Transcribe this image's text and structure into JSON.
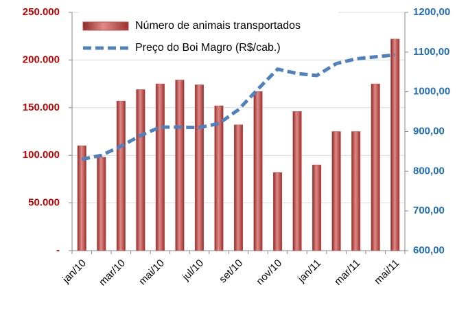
{
  "chart_data": {
    "type": "bar-line",
    "categories": [
      "jan/10",
      null,
      "mar/10",
      null,
      "mai/10",
      null,
      "jul/10",
      null,
      "set/10",
      null,
      "nov/10",
      null,
      "jan/11",
      null,
      "mar/11",
      null,
      "mai/11"
    ],
    "series": [
      {
        "name": "Número de animais transportados",
        "type": "bar",
        "color": "#c0504d",
        "axis": "y",
        "values": [
          110000,
          98000,
          157000,
          169000,
          175000,
          179000,
          174000,
          152000,
          132000,
          167000,
          82000,
          146000,
          90000,
          125000,
          125000,
          175000,
          222000
        ]
      },
      {
        "name": "Preço do Boi Magro (R$/cab.)",
        "type": "line",
        "color": "#4f81bd",
        "axis": "y2",
        "dashed": true,
        "values": [
          830,
          840,
          863,
          890,
          911,
          911,
          910,
          920,
          955,
          1007,
          1057,
          1046,
          1041,
          1071,
          1083,
          1088,
          1093
        ]
      }
    ],
    "ylim": [
      0,
      250000
    ],
    "yticks": [
      {
        "value": 0,
        "label": "-"
      },
      {
        "value": 50000,
        "label": "50.000"
      },
      {
        "value": 100000,
        "label": "100.000"
      },
      {
        "value": 150000,
        "label": "150.000"
      },
      {
        "value": 200000,
        "label": "200.000"
      },
      {
        "value": 250000,
        "label": "250.000"
      }
    ],
    "y2lim": [
      600,
      1200
    ],
    "y2ticks": [
      {
        "value": 600,
        "label": "600,00"
      },
      {
        "value": 700,
        "label": "700,00"
      },
      {
        "value": 800,
        "label": "800,00"
      },
      {
        "value": 900,
        "label": "900,00"
      },
      {
        "value": 1000,
        "label": "1000,00"
      },
      {
        "value": 1100,
        "label": "1100,00"
      },
      {
        "value": 1200,
        "label": "1200,00"
      }
    ],
    "grid": true,
    "legend": "top-left",
    "ytick_color": "#c00000",
    "y2tick_color": "#1f6db5"
  }
}
